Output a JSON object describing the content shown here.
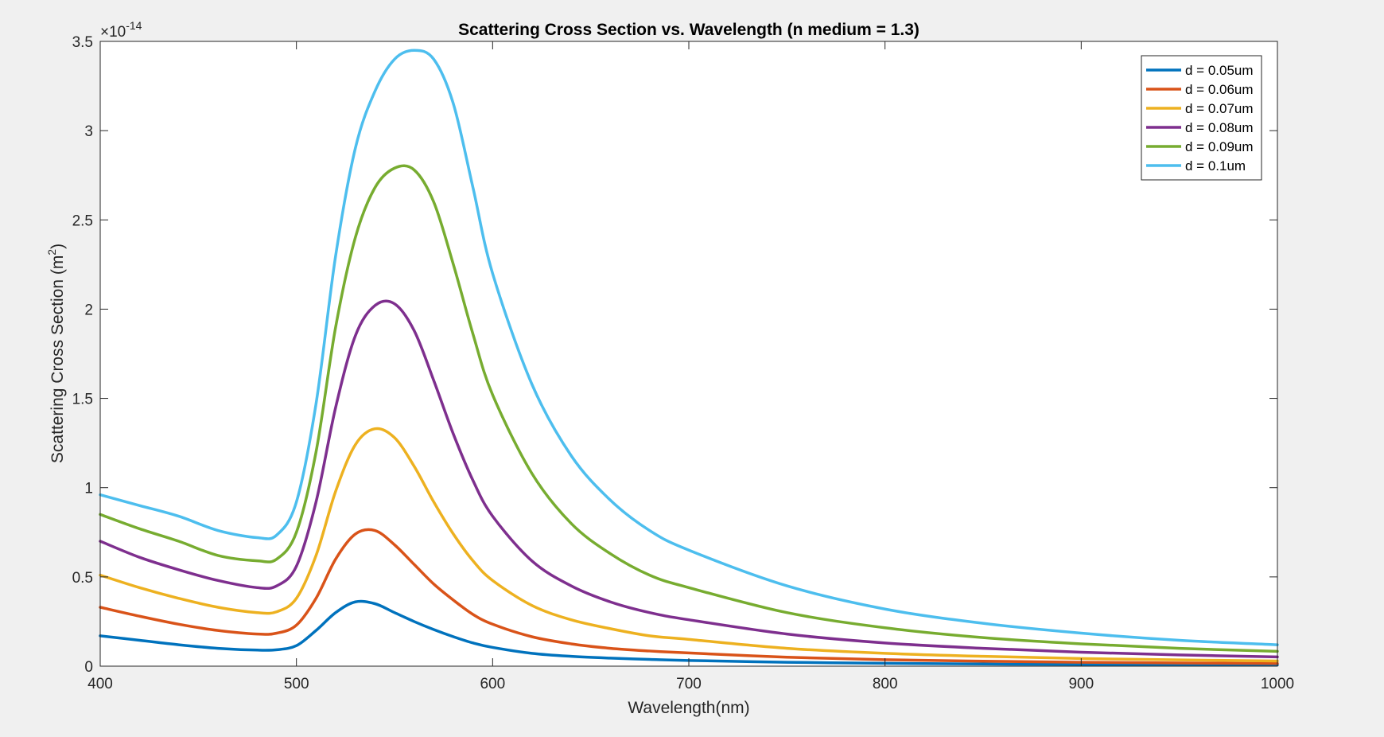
{
  "chart_data": {
    "type": "line",
    "title": "Scattering Cross Section vs. Wavelength (n medium = 1.3)",
    "xlabel": "Wavelength(nm)",
    "ylabel": "Scattering Cross Section (m",
    "ylabel_sup": "2",
    "ylabel_tail": ")",
    "y_exponent_base": "×10",
    "y_exponent_power": "-14",
    "xlim": [
      400,
      1000
    ],
    "ylim": [
      0,
      3.5
    ],
    "xticks": [
      400,
      500,
      600,
      700,
      800,
      900,
      1000
    ],
    "xtick_labels": [
      "400",
      "500",
      "600",
      "700",
      "800",
      "900",
      "1000"
    ],
    "yticks": [
      0,
      0.5,
      1,
      1.5,
      2,
      2.5,
      3,
      3.5
    ],
    "ytick_labels": [
      "0",
      "0.5",
      "1",
      "1.5",
      "2",
      "2.5",
      "3",
      "3.5"
    ],
    "legend_position": "top-right",
    "grid": false,
    "x": [
      400,
      420,
      440,
      460,
      480,
      490,
      500,
      510,
      520,
      530,
      540,
      550,
      560,
      570,
      580,
      590,
      600,
      620,
      640,
      660,
      680,
      700,
      750,
      800,
      850,
      900,
      950,
      1000
    ],
    "series": [
      {
        "name": "d = 0.05um",
        "color": "#0072BD",
        "values": [
          0.17,
          0.145,
          0.12,
          0.1,
          0.09,
          0.092,
          0.115,
          0.2,
          0.3,
          0.36,
          0.35,
          0.3,
          0.25,
          0.205,
          0.165,
          0.13,
          0.105,
          0.072,
          0.055,
          0.045,
          0.038,
          0.032,
          0.022,
          0.016,
          0.012,
          0.01,
          0.008,
          0.007
        ]
      },
      {
        "name": "d = 0.06um",
        "color": "#D95319",
        "values": [
          0.33,
          0.28,
          0.235,
          0.2,
          0.18,
          0.185,
          0.23,
          0.38,
          0.6,
          0.74,
          0.76,
          0.68,
          0.57,
          0.46,
          0.37,
          0.29,
          0.235,
          0.165,
          0.125,
          0.1,
          0.085,
          0.074,
          0.05,
          0.036,
          0.028,
          0.022,
          0.018,
          0.015
        ]
      },
      {
        "name": "d = 0.07um",
        "color": "#EDB120",
        "values": [
          0.51,
          0.44,
          0.38,
          0.33,
          0.3,
          0.305,
          0.38,
          0.62,
          0.98,
          1.24,
          1.33,
          1.28,
          1.12,
          0.92,
          0.74,
          0.59,
          0.48,
          0.34,
          0.26,
          0.21,
          0.17,
          0.15,
          0.1,
          0.072,
          0.055,
          0.043,
          0.035,
          0.029
        ]
      },
      {
        "name": "d = 0.08um",
        "color": "#7E2F8E",
        "values": [
          0.7,
          0.61,
          0.54,
          0.48,
          0.44,
          0.45,
          0.56,
          0.92,
          1.45,
          1.85,
          2.02,
          2.03,
          1.88,
          1.6,
          1.3,
          1.04,
          0.84,
          0.59,
          0.45,
          0.36,
          0.3,
          0.26,
          0.18,
          0.13,
          0.1,
          0.078,
          0.063,
          0.052
        ]
      },
      {
        "name": "d = 0.09um",
        "color": "#77AC30",
        "values": [
          0.85,
          0.77,
          0.7,
          0.62,
          0.59,
          0.6,
          0.75,
          1.2,
          1.9,
          2.4,
          2.68,
          2.79,
          2.78,
          2.6,
          2.25,
          1.86,
          1.52,
          1.08,
          0.8,
          0.63,
          0.51,
          0.44,
          0.3,
          0.215,
          0.16,
          0.125,
          0.1,
          0.083
        ]
      },
      {
        "name": "d = 0.1um",
        "color": "#4DBEEE",
        "values": [
          0.96,
          0.9,
          0.84,
          0.76,
          0.72,
          0.735,
          0.92,
          1.47,
          2.3,
          2.9,
          3.22,
          3.4,
          3.45,
          3.4,
          3.15,
          2.68,
          2.2,
          1.58,
          1.18,
          0.93,
          0.76,
          0.65,
          0.45,
          0.32,
          0.24,
          0.185,
          0.145,
          0.12
        ]
      }
    ]
  }
}
